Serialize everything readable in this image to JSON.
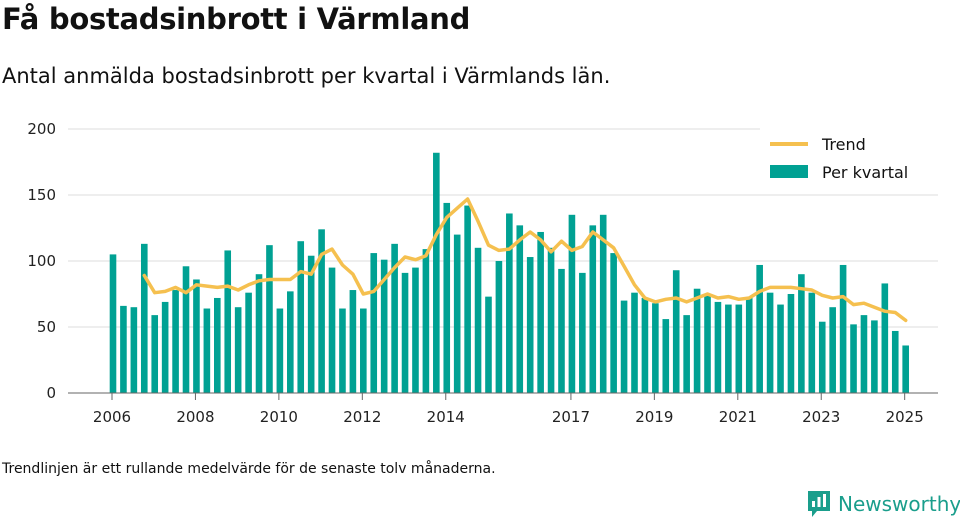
{
  "title": "Få bostadsinbrott i Värmland",
  "subtitle": "Antal anmälda bostadsinbrott per kvartal i Värmlands län.",
  "footnote": "Trendlinjen är ett rullande medelvärde för de senaste tolv månaderna.",
  "brand": "Newsworthy",
  "colors": {
    "bar": "#00a193",
    "trend": "#f5c04f",
    "grid": "#dddddd",
    "brand": "#1a9e8c"
  },
  "chart_data": {
    "type": "bar",
    "title": "",
    "xlabel": "",
    "ylabel": "",
    "ylim": [
      0,
      200
    ],
    "yticks": [
      0,
      50,
      100,
      150,
      200
    ],
    "xticks": [
      "2006",
      "2008",
      "2010",
      "2012",
      "2014",
      "2017",
      "2019",
      "2021",
      "2023",
      "2025"
    ],
    "grid": true,
    "legend_position": "top-right",
    "series": [
      {
        "name": "Per kvartal",
        "type": "bar",
        "values": [
          105,
          66,
          65,
          113,
          59,
          69,
          78,
          96,
          86,
          64,
          72,
          108,
          65,
          76,
          90,
          112,
          64,
          77,
          115,
          104,
          124,
          95,
          64,
          78,
          64,
          106,
          101,
          113,
          91,
          95,
          109,
          182,
          144,
          120,
          142,
          110,
          73,
          100,
          136,
          127,
          103,
          122,
          110,
          94,
          135,
          91,
          127,
          135,
          106,
          70,
          76,
          72,
          68,
          56,
          93,
          59,
          79,
          75,
          69,
          67,
          67,
          72,
          97,
          76,
          67,
          75,
          90,
          76,
          54,
          65,
          97,
          52,
          59,
          55,
          83,
          47,
          36
        ]
      },
      {
        "name": "Trend",
        "type": "line",
        "values": [
          null,
          null,
          null,
          89,
          76,
          77,
          80,
          76,
          82,
          81,
          80,
          81,
          78,
          82,
          85,
          86,
          86,
          86,
          92,
          90,
          105,
          109,
          97,
          90,
          75,
          77,
          86,
          95,
          103,
          101,
          104,
          120,
          133,
          140,
          147,
          130,
          112,
          108,
          109,
          116,
          122,
          116,
          107,
          115,
          108,
          111,
          122,
          116,
          110,
          96,
          82,
          72,
          69,
          71,
          72,
          69,
          72,
          75,
          72,
          73,
          71,
          72,
          77,
          80,
          80,
          80,
          79,
          78,
          74,
          72,
          73,
          67,
          68,
          65,
          62,
          61,
          55
        ]
      }
    ]
  }
}
